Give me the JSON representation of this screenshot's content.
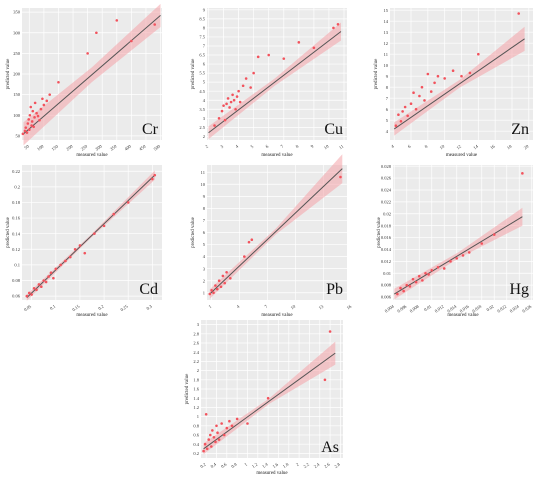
{
  "chart_data": [
    {
      "type": "scatter",
      "element": "Cr",
      "xlabel": "measured value",
      "ylabel": "predicted value",
      "xticks": [
        50,
        100,
        150,
        200,
        250,
        300,
        350,
        400,
        450,
        500
      ],
      "yticks": [
        50,
        100,
        150,
        200,
        250,
        300,
        350
      ],
      "xlim": [
        25,
        505
      ],
      "ylim": [
        40,
        360
      ],
      "grid": true,
      "fit_line": [
        [
          30,
          55
        ],
        [
          500,
          342
        ]
      ],
      "band_halfwidth": [
        28,
        18,
        28
      ],
      "points": [
        [
          28,
          55
        ],
        [
          35,
          62
        ],
        [
          38,
          70
        ],
        [
          42,
          58
        ],
        [
          45,
          80
        ],
        [
          48,
          90
        ],
        [
          50,
          65
        ],
        [
          52,
          100
        ],
        [
          55,
          120
        ],
        [
          58,
          75
        ],
        [
          60,
          85
        ],
        [
          62,
          110
        ],
        [
          65,
          72
        ],
        [
          68,
          95
        ],
        [
          70,
          130
        ],
        [
          75,
          105
        ],
        [
          80,
          98
        ],
        [
          85,
          88
        ],
        [
          90,
          115
        ],
        [
          95,
          140
        ],
        [
          100,
          125
        ],
        [
          110,
          135
        ],
        [
          120,
          150
        ],
        [
          150,
          180
        ],
        [
          250,
          250
        ],
        [
          280,
          300
        ],
        [
          350,
          330
        ],
        [
          400,
          280
        ],
        [
          480,
          320
        ]
      ]
    },
    {
      "type": "scatter",
      "element": "Cu",
      "xlabel": "measured value",
      "ylabel": "predicted value",
      "xticks": [
        2,
        3,
        4,
        5,
        6,
        7,
        8,
        9,
        10,
        11
      ],
      "yticks": [
        2,
        2.5,
        3,
        3.5,
        4,
        4.5,
        5,
        5.5,
        6,
        6.5,
        7,
        7.5,
        8,
        8.5,
        9
      ],
      "xlim": [
        1.9,
        11.2
      ],
      "ylim": [
        1.8,
        9.1
      ],
      "grid": true,
      "fit_line": [
        [
          2,
          2.2
        ],
        [
          10.8,
          7.8
        ]
      ],
      "band_halfwidth": [
        0.35,
        0.2,
        0.5
      ],
      "points": [
        [
          2.4,
          2.6
        ],
        [
          2.7,
          3.0
        ],
        [
          2.9,
          3.4
        ],
        [
          3.0,
          3.7
        ],
        [
          3.1,
          2.9
        ],
        [
          3.2,
          3.8
        ],
        [
          3.3,
          4.1
        ],
        [
          3.4,
          3.6
        ],
        [
          3.5,
          3.9
        ],
        [
          3.6,
          4.3
        ],
        [
          3.7,
          4.0
        ],
        [
          3.8,
          3.5
        ],
        [
          3.9,
          4.2
        ],
        [
          4.0,
          4.5
        ],
        [
          4.1,
          3.9
        ],
        [
          4.3,
          4.8
        ],
        [
          4.5,
          5.2
        ],
        [
          4.8,
          4.7
        ],
        [
          5.0,
          5.5
        ],
        [
          5.3,
          6.4
        ],
        [
          6.0,
          6.5
        ],
        [
          7.0,
          6.3
        ],
        [
          8.0,
          7.2
        ],
        [
          9.0,
          6.9
        ],
        [
          10.3,
          8.0
        ],
        [
          10.6,
          8.2
        ]
      ]
    },
    {
      "type": "scatter",
      "element": "Zn",
      "xlabel": "measured value",
      "ylabel": "predicted value",
      "xticks": [
        4,
        6,
        8,
        10,
        12,
        14,
        16,
        18,
        20
      ],
      "yticks": [
        3,
        4,
        5,
        6,
        7,
        8,
        9,
        10,
        11,
        12,
        13,
        14,
        15
      ],
      "xlim": [
        3.5,
        20.5
      ],
      "ylim": [
        3.2,
        15.2
      ],
      "grid": true,
      "fit_line": [
        [
          4,
          4.2
        ],
        [
          19.5,
          12.4
        ]
      ],
      "band_halfwidth": [
        0.6,
        0.35,
        1.1
      ],
      "points": [
        [
          4.2,
          4.5
        ],
        [
          4.5,
          5.5
        ],
        [
          4.8,
          4.9
        ],
        [
          5.0,
          5.8
        ],
        [
          5.3,
          6.2
        ],
        [
          5.6,
          5.4
        ],
        [
          6.0,
          6.5
        ],
        [
          6.3,
          7.5
        ],
        [
          6.6,
          6.0
        ],
        [
          7.0,
          7.2
        ],
        [
          7.3,
          8.0
        ],
        [
          7.6,
          6.8
        ],
        [
          8.0,
          9.2
        ],
        [
          8.4,
          7.6
        ],
        [
          8.8,
          8.4
        ],
        [
          9.2,
          9.0
        ],
        [
          10.0,
          8.8
        ],
        [
          11.0,
          9.5
        ],
        [
          12.0,
          9.0
        ],
        [
          13.0,
          9.3
        ],
        [
          14.0,
          11.0
        ],
        [
          18.8,
          14.7
        ]
      ]
    },
    {
      "type": "scatter",
      "element": "Cd",
      "xlabel": "measured value",
      "ylabel": "predicted value",
      "xticks": [
        0.05,
        0.1,
        0.15,
        0.2,
        0.25,
        0.3
      ],
      "yticks": [
        0.06,
        0.08,
        0.1,
        0.12,
        0.14,
        0.16,
        0.18,
        0.2,
        0.22
      ],
      "xlim": [
        0.03,
        0.32
      ],
      "ylim": [
        0.055,
        0.228
      ],
      "grid": true,
      "fit_line": [
        [
          0.04,
          0.058
        ],
        [
          0.305,
          0.215
        ]
      ],
      "band_halfwidth": [
        0.004,
        0.002,
        0.006
      ],
      "points": [
        [
          0.04,
          0.06
        ],
        [
          0.045,
          0.064
        ],
        [
          0.05,
          0.062
        ],
        [
          0.055,
          0.07
        ],
        [
          0.06,
          0.068
        ],
        [
          0.065,
          0.075
        ],
        [
          0.07,
          0.072
        ],
        [
          0.075,
          0.08
        ],
        [
          0.08,
          0.078
        ],
        [
          0.085,
          0.085
        ],
        [
          0.09,
          0.09
        ],
        [
          0.095,
          0.083
        ],
        [
          0.1,
          0.095
        ],
        [
          0.11,
          0.1
        ],
        [
          0.12,
          0.105
        ],
        [
          0.13,
          0.11
        ],
        [
          0.14,
          0.12
        ],
        [
          0.15,
          0.125
        ],
        [
          0.16,
          0.115
        ],
        [
          0.18,
          0.14
        ],
        [
          0.2,
          0.15
        ],
        [
          0.22,
          0.165
        ],
        [
          0.25,
          0.18
        ],
        [
          0.3,
          0.21
        ],
        [
          0.305,
          0.215
        ]
      ]
    },
    {
      "type": "scatter",
      "element": "Pb",
      "xlabel": "measured value",
      "ylabel": "predicted value",
      "xticks": [
        1,
        4,
        7,
        10,
        13,
        16
      ],
      "yticks": [
        1,
        2,
        3,
        4,
        5,
        6,
        7,
        8,
        9,
        10,
        11
      ],
      "xlim": [
        0.5,
        15.5
      ],
      "ylim": [
        0.4,
        11.6
      ],
      "grid": true,
      "fit_line": [
        [
          0.8,
          0.9
        ],
        [
          15,
          11.3
        ]
      ],
      "band_halfwidth": [
        0.4,
        0.25,
        1.2
      ],
      "points": [
        [
          0.8,
          0.9
        ],
        [
          1.0,
          1.2
        ],
        [
          1.2,
          1.0
        ],
        [
          1.4,
          1.6
        ],
        [
          1.6,
          1.3
        ],
        [
          1.8,
          2.0
        ],
        [
          2.0,
          1.5
        ],
        [
          2.2,
          2.4
        ],
        [
          2.4,
          1.8
        ],
        [
          2.6,
          2.7
        ],
        [
          3.0,
          2.2
        ],
        [
          4.5,
          4.0
        ],
        [
          5.0,
          5.2
        ],
        [
          5.3,
          5.4
        ],
        [
          14.8,
          10.6
        ]
      ]
    },
    {
      "type": "scatter",
      "element": "Hg",
      "xlabel": "measured value",
      "ylabel": "predicted value",
      "xticks": [
        0.004,
        0.006,
        0.008,
        0.01,
        0.012,
        0.014,
        0.016,
        0.018,
        0.02,
        0.022,
        0.024,
        0.026
      ],
      "yticks": [
        0.006,
        0.008,
        0.01,
        0.012,
        0.014,
        0.016,
        0.018,
        0.02,
        0.022,
        0.024,
        0.026,
        0.028
      ],
      "xlim": [
        0.0038,
        0.0262
      ],
      "ylim": [
        0.0055,
        0.0282
      ],
      "grid": true,
      "fit_line": [
        [
          0.004,
          0.0065
        ],
        [
          0.0245,
          0.0195
        ]
      ],
      "band_halfwidth": [
        0.0009,
        0.0005,
        0.0015
      ],
      "points": [
        [
          0.0045,
          0.0065
        ],
        [
          0.005,
          0.0075
        ],
        [
          0.0055,
          0.007
        ],
        [
          0.006,
          0.008
        ],
        [
          0.0065,
          0.0078
        ],
        [
          0.007,
          0.009
        ],
        [
          0.0075,
          0.0085
        ],
        [
          0.008,
          0.0095
        ],
        [
          0.0085,
          0.0088
        ],
        [
          0.009,
          0.01
        ],
        [
          0.0095,
          0.0098
        ],
        [
          0.01,
          0.0105
        ],
        [
          0.011,
          0.011
        ],
        [
          0.012,
          0.0108
        ],
        [
          0.013,
          0.012
        ],
        [
          0.014,
          0.0125
        ],
        [
          0.015,
          0.013
        ],
        [
          0.016,
          0.0135
        ],
        [
          0.018,
          0.015
        ],
        [
          0.02,
          0.0165
        ],
        [
          0.0245,
          0.0268
        ]
      ]
    },
    {
      "type": "scatter",
      "element": "As",
      "xlabel": "measured value",
      "ylabel": "predicted value",
      "xticks": [
        0.2,
        0.4,
        0.6,
        0.8,
        1,
        1.2,
        1.4,
        1.6,
        1.8,
        2,
        2.2,
        2.4,
        2.6,
        2.8
      ],
      "yticks": [
        0.2,
        0.4,
        0.6,
        0.8,
        1,
        1.2,
        1.4,
        1.6,
        1.8,
        2,
        2.2,
        2.4,
        2.6,
        2.8,
        3
      ],
      "xlim": [
        0.1,
        2.85
      ],
      "ylim": [
        0.1,
        3.1
      ],
      "grid": true,
      "fit_line": [
        [
          0.15,
          0.3
        ],
        [
          2.7,
          2.38
        ]
      ],
      "band_halfwidth": [
        0.12,
        0.06,
        0.25
      ],
      "points": [
        [
          0.15,
          0.25
        ],
        [
          0.18,
          0.4
        ],
        [
          0.2,
          1.05
        ],
        [
          0.22,
          0.3
        ],
        [
          0.25,
          0.5
        ],
        [
          0.28,
          0.6
        ],
        [
          0.3,
          0.35
        ],
        [
          0.32,
          0.7
        ],
        [
          0.35,
          0.55
        ],
        [
          0.38,
          0.45
        ],
        [
          0.4,
          0.8
        ],
        [
          0.42,
          0.65
        ],
        [
          0.45,
          0.5
        ],
        [
          0.5,
          0.85
        ],
        [
          0.55,
          0.6
        ],
        [
          0.6,
          0.75
        ],
        [
          0.65,
          0.9
        ],
        [
          0.7,
          0.8
        ],
        [
          0.8,
          0.95
        ],
        [
          1.0,
          0.85
        ],
        [
          1.4,
          1.4
        ],
        [
          2.5,
          1.8
        ],
        [
          2.6,
          2.85
        ]
      ]
    }
  ]
}
